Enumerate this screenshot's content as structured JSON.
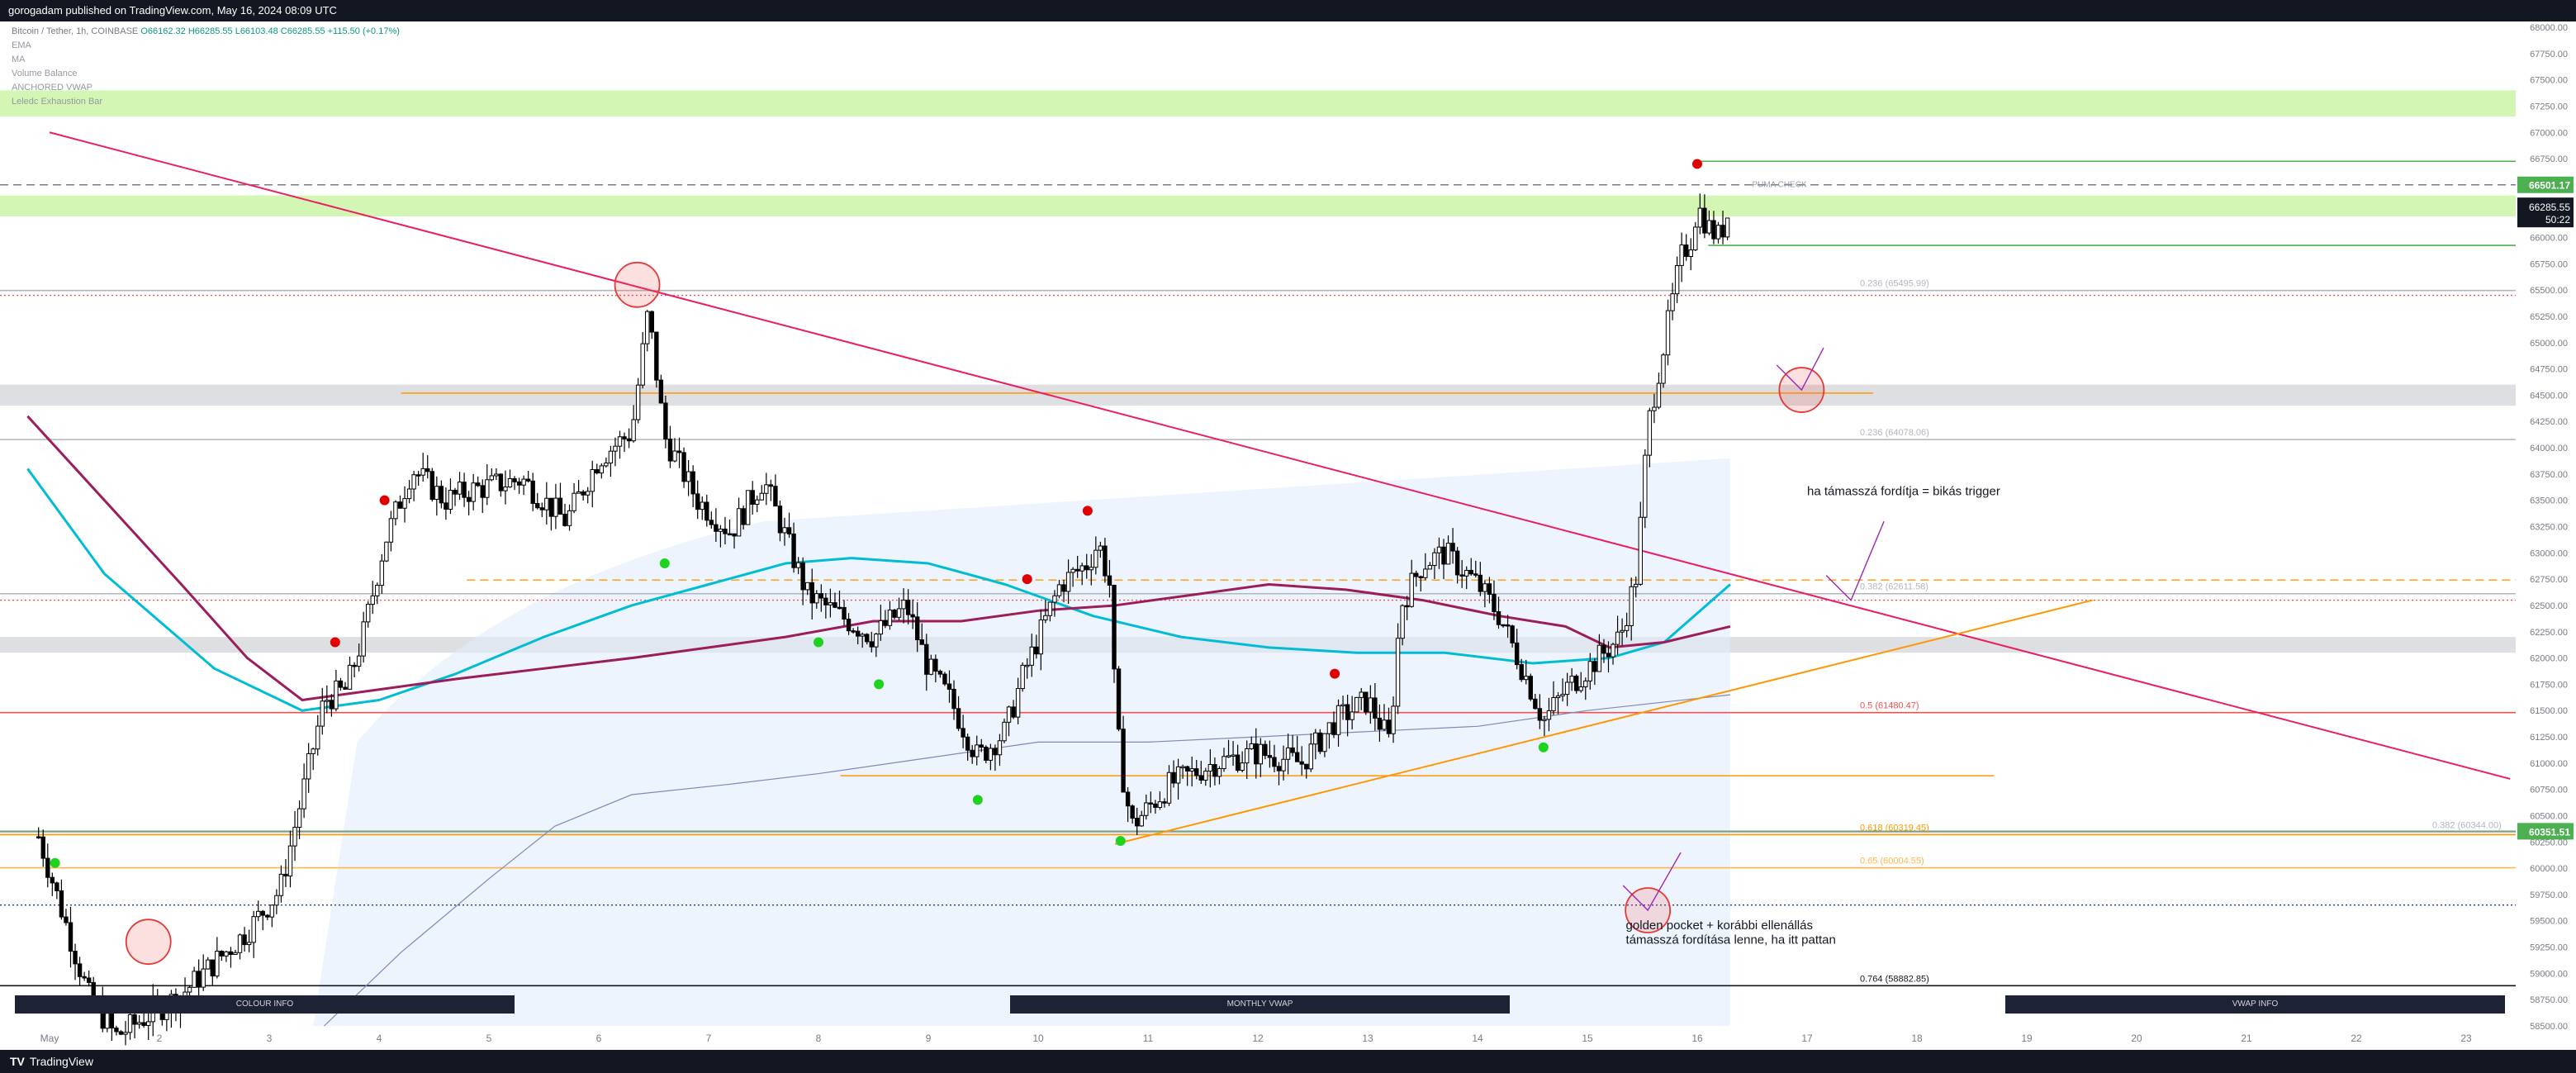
{
  "header": {
    "published": "gorogadam published on TradingView.com, May 16, 2024 08:09 UTC"
  },
  "legend": {
    "symbol": "Bitcoin / Tether, 1h, COINBASE",
    "ohlc": "O66162.32 H66285.55 L66103.48 C66285.55 +115.50 (+0.17%)",
    "indicators": [
      "EMA",
      "MA",
      "Volume Balance",
      "ANCHORED VWAP",
      "Leledc Exhaustion Bar"
    ]
  },
  "footer": {
    "logo": "TV",
    "brand": "TradingView"
  },
  "panels": [
    "COLOUR INFO",
    "MONTHLY VWAP",
    "VWAP INFO"
  ],
  "colors": {
    "up": "#26a69a",
    "down": "#ef5350",
    "candle": "#000000",
    "ema_cyan": "#00bcd4",
    "ma_maroon": "#9c1d5b",
    "trendline_pink": "#e91e63",
    "support_orange": "#ff9800",
    "green_level": "#4caf50",
    "zone_green": "#ccf5a7",
    "zone_gray": "#d7d9dd"
  },
  "chart_data": {
    "type": "candlestick",
    "symbol": "BTCUSDT",
    "timeframe": "1h",
    "ylim": [
      58500,
      68000
    ],
    "y_ticks": [
      58500,
      58750,
      59000,
      59250,
      59500,
      59750,
      60000,
      60250,
      60500,
      60750,
      61000,
      61250,
      61500,
      61750,
      62000,
      62250,
      62500,
      62750,
      63000,
      63250,
      63500,
      63750,
      64000,
      64250,
      64500,
      64750,
      65000,
      65250,
      65500,
      65750,
      66000,
      66250,
      66500,
      66750,
      67000,
      67250,
      67500,
      67750,
      68000
    ],
    "y_tick_labels": [
      "58500.00",
      "58750.00",
      "59000.00",
      "59250.00",
      "59500.00",
      "59750.00",
      "60000.00",
      "60250.00",
      "60500.00",
      "60750.00",
      "61000.00",
      "61250.00",
      "61500.00",
      "61750.00",
      "62000.00",
      "62250.00",
      "62500.00",
      "62750.00",
      "63000.00",
      "63250.00",
      "63500.00",
      "63750.00",
      "64000.00",
      "64250.00",
      "64500.00",
      "64750.00",
      "65000.00",
      "65250.00",
      "65500.00",
      "65750.00",
      "66000.00",
      "66250.00",
      "66500.00",
      "66750.00",
      "67000.00",
      "67250.00",
      "67500.00",
      "67750.00",
      "68000.00"
    ],
    "x_labels": [
      "May",
      "2",
      "3",
      "4",
      "5",
      "6",
      "7",
      "8",
      "9",
      "10",
      "11",
      "12",
      "13",
      "14",
      "15",
      "16",
      "17",
      "18",
      "19",
      "20",
      "21",
      "22",
      "23"
    ],
    "x_label_days": [
      1,
      2,
      3,
      4,
      5,
      6,
      7,
      8,
      9,
      10,
      11,
      12,
      13,
      14,
      15,
      16,
      17,
      18,
      19,
      20,
      21,
      22,
      23
    ],
    "price_path": [
      [
        0.9,
        60300
      ],
      [
        1.2,
        59300
      ],
      [
        1.35,
        58800
      ],
      [
        1.6,
        58400
      ],
      [
        2.2,
        58800
      ],
      [
        2.8,
        59400
      ],
      [
        3.1,
        59800
      ],
      [
        3.5,
        61600
      ],
      [
        3.7,
        61700
      ],
      [
        3.85,
        62200
      ],
      [
        4.05,
        63100
      ],
      [
        4.3,
        63800
      ],
      [
        4.6,
        63500
      ],
      [
        4.85,
        63600
      ],
      [
        5.3,
        63700
      ],
      [
        5.7,
        63300
      ],
      [
        6.0,
        63900
      ],
      [
        6.3,
        64150
      ],
      [
        6.45,
        65300
      ],
      [
        6.6,
        64100
      ],
      [
        6.9,
        63500
      ],
      [
        7.2,
        63200
      ],
      [
        7.5,
        63700
      ],
      [
        7.9,
        62600
      ],
      [
        8.2,
        62400
      ],
      [
        8.5,
        62200
      ],
      [
        8.8,
        62500
      ],
      [
        9.0,
        61900
      ],
      [
        9.2,
        61600
      ],
      [
        9.45,
        61050
      ],
      [
        9.7,
        61300
      ],
      [
        9.85,
        61800
      ],
      [
        10.2,
        62700
      ],
      [
        10.45,
        62900
      ],
      [
        10.55,
        63100
      ],
      [
        10.65,
        62700
      ],
      [
        10.7,
        61600
      ],
      [
        10.75,
        61000
      ],
      [
        10.85,
        60400
      ],
      [
        11.2,
        60800
      ],
      [
        11.6,
        61000
      ],
      [
        12.0,
        61100
      ],
      [
        12.4,
        61000
      ],
      [
        12.7,
        61400
      ],
      [
        13.0,
        61600
      ],
      [
        13.2,
        61200
      ],
      [
        13.3,
        62500
      ],
      [
        13.5,
        62900
      ],
      [
        13.7,
        63000
      ],
      [
        14.0,
        62700
      ],
      [
        14.2,
        62400
      ],
      [
        14.45,
        61800
      ],
      [
        14.6,
        61400
      ],
      [
        14.8,
        61700
      ],
      [
        15.1,
        62000
      ],
      [
        15.3,
        62200
      ],
      [
        15.45,
        62800
      ],
      [
        15.55,
        64200
      ],
      [
        15.7,
        65000
      ],
      [
        15.85,
        65800
      ],
      [
        15.95,
        66000
      ],
      [
        16.0,
        66300
      ],
      [
        16.1,
        66100
      ],
      [
        16.2,
        66000
      ],
      [
        16.3,
        66285.55
      ]
    ],
    "last_price": 66285.55,
    "last_price_label": "66285.55",
    "countdown": "50:22",
    "ema_points": [
      [
        0.8,
        63800
      ],
      [
        1.5,
        62800
      ],
      [
        2.5,
        61900
      ],
      [
        3.3,
        61500
      ],
      [
        4.0,
        61600
      ],
      [
        4.7,
        61850
      ],
      [
        5.5,
        62200
      ],
      [
        6.3,
        62500
      ],
      [
        7.0,
        62700
      ],
      [
        7.7,
        62900
      ],
      [
        8.3,
        62950
      ],
      [
        9.0,
        62900
      ],
      [
        9.7,
        62700
      ],
      [
        10.5,
        62400
      ],
      [
        11.3,
        62200
      ],
      [
        12.1,
        62100
      ],
      [
        12.9,
        62050
      ],
      [
        13.7,
        62050
      ],
      [
        14.5,
        61950
      ],
      [
        15.2,
        62000
      ],
      [
        15.7,
        62150
      ],
      [
        16.3,
        62700
      ]
    ],
    "ma_points": [
      [
        0.8,
        64300
      ],
      [
        1.5,
        63500
      ],
      [
        2.2,
        62700
      ],
      [
        2.8,
        62000
      ],
      [
        3.3,
        61600
      ],
      [
        4.0,
        61700
      ],
      [
        4.7,
        61800
      ],
      [
        5.5,
        61900
      ],
      [
        6.3,
        62000
      ],
      [
        7.0,
        62100
      ],
      [
        7.7,
        62200
      ],
      [
        8.5,
        62350
      ],
      [
        9.3,
        62350
      ],
      [
        10.0,
        62450
      ],
      [
        10.7,
        62500
      ],
      [
        11.4,
        62600
      ],
      [
        12.1,
        62700
      ],
      [
        12.8,
        62650
      ],
      [
        13.5,
        62550
      ],
      [
        14.2,
        62400
      ],
      [
        14.8,
        62300
      ],
      [
        15.2,
        62100
      ],
      [
        15.7,
        62150
      ],
      [
        16.3,
        62300
      ]
    ],
    "vwap_points": [
      [
        3.5,
        58500
      ],
      [
        4.2,
        59200
      ],
      [
        5.0,
        59900
      ],
      [
        5.6,
        60400
      ],
      [
        6.3,
        60700
      ],
      [
        7.2,
        60800
      ],
      [
        8.0,
        60900
      ],
      [
        9.0,
        61050
      ],
      [
        10.0,
        61200
      ],
      [
        11.0,
        61200
      ],
      [
        12.0,
        61250
      ],
      [
        13.0,
        61300
      ],
      [
        14.0,
        61350
      ],
      [
        15.0,
        61500
      ],
      [
        16.3,
        61650
      ]
    ],
    "swing_highs": [
      [
        3.6,
        62150
      ],
      [
        4.05,
        63500
      ],
      [
        9.9,
        62750
      ],
      [
        10.45,
        63400
      ],
      [
        12.7,
        61850
      ],
      [
        16.0,
        66700
      ]
    ],
    "swing_lows": [
      [
        1.05,
        60050
      ],
      [
        6.6,
        62900
      ],
      [
        8.0,
        62150
      ],
      [
        8.55,
        61750
      ],
      [
        9.45,
        60650
      ],
      [
        10.75,
        60260
      ],
      [
        14.6,
        61150
      ]
    ],
    "circles": [
      [
        6.35,
        65550
      ],
      [
        16.95,
        64550
      ],
      [
        1.9,
        59300
      ],
      [
        15.55,
        59600
      ]
    ],
    "arrows": [
      [
        [
          16.95,
          64550
        ],
        [
          17.15,
          64950
        ]
      ],
      [
        [
          17.4,
          62550
        ],
        [
          17.7,
          63300
        ]
      ],
      [
        [
          15.55,
          59600
        ],
        [
          15.85,
          60150
        ]
      ]
    ],
    "trendline_pink": [
      [
        1.0,
        67000
      ],
      [
        23.4,
        60850
      ]
    ],
    "trendline_orange": [
      [
        10.7,
        60230
      ],
      [
        19.6,
        62550
      ]
    ],
    "levels": [
      {
        "price": 66501.17,
        "label": "",
        "style": "dashed",
        "color": "#787b86"
      },
      {
        "price": 66725,
        "label": "",
        "style": "solid",
        "color": "#4caf50",
        "from": 16.0
      },
      {
        "price": 65925,
        "label": "",
        "style": "solid",
        "color": "#4caf50",
        "from": 16.1
      },
      {
        "price": 65495.99,
        "label": "0.236 (65495.99)",
        "style": "solid",
        "color": "#b2b5be"
      },
      {
        "price": 65450,
        "label": "",
        "style": "dotted",
        "color": "#ef5350"
      },
      {
        "price": 64520,
        "label": "",
        "style": "solid",
        "color": "#ff9800",
        "from": 4.2,
        "to": 17.6
      },
      {
        "price": 64078.06,
        "label": "0.236 (64078.06)",
        "style": "solid",
        "color": "#b2b5be"
      },
      {
        "price": 62742,
        "label": "",
        "style": "dashed",
        "color": "#ff9800",
        "from": 4.8
      },
      {
        "price": 62611.58,
        "label": "0.382 (62611.58)",
        "style": "solid",
        "color": "#b2b5be"
      },
      {
        "price": 62550,
        "label": "",
        "style": "dotted",
        "color": "#ef5350"
      },
      {
        "price": 61480.47,
        "label": "0.5 (61480.47)",
        "style": "solid",
        "color": "#ef5350"
      },
      {
        "price": 60880,
        "label": "",
        "style": "solid",
        "color": "#ff9800",
        "from": 8.2,
        "to": 18.7
      },
      {
        "price": 60351.51,
        "label": "",
        "style": "solid",
        "color": "#388e3c"
      },
      {
        "price": 60344.0,
        "label": "0.382 (60344.00)",
        "style": "solid",
        "color": "#b2b5be"
      },
      {
        "price": 60319.45,
        "label": "0.618 (60319.45)",
        "style": "solid",
        "color": "#ff9800"
      },
      {
        "price": 60004.55,
        "label": "0.65 (60004.55)",
        "style": "solid",
        "color": "#ffb74d"
      },
      {
        "price": 59650,
        "label": "",
        "style": "dotted",
        "color": "#1e3a8a"
      },
      {
        "price": 58882.85,
        "label": "0.764 (58882.85)",
        "style": "solid",
        "color": "#131722"
      }
    ],
    "zones": [
      {
        "from": 67150,
        "to": 67400,
        "color": "#ccf5a7"
      },
      {
        "from": 66200,
        "to": 66400,
        "color": "#ccf5a7"
      },
      {
        "from": 64400,
        "to": 64600,
        "color": "#d7d9dd"
      },
      {
        "from": 62050,
        "to": 62200,
        "color": "#d7d9dd"
      }
    ],
    "price_badges": [
      {
        "price": 66501.17,
        "label": "66501.17",
        "color": "#4caf50"
      },
      {
        "price": 60351.51,
        "label": "60351.51",
        "color": "#4caf50"
      }
    ],
    "annotations": [
      {
        "text": "ha támasszá fordítja = bikás trigger",
        "day": 17.0,
        "price": 63550
      },
      {
        "text": "golden pocket + korábbi ellenállás",
        "day": 15.35,
        "price": 59420
      },
      {
        "text": "támasszá fordítása lenne, ha itt pattan",
        "day": 15.35,
        "price": 59280
      },
      {
        "text": "PUMA CHECK",
        "day": 16.5,
        "price": 66480
      }
    ]
  }
}
